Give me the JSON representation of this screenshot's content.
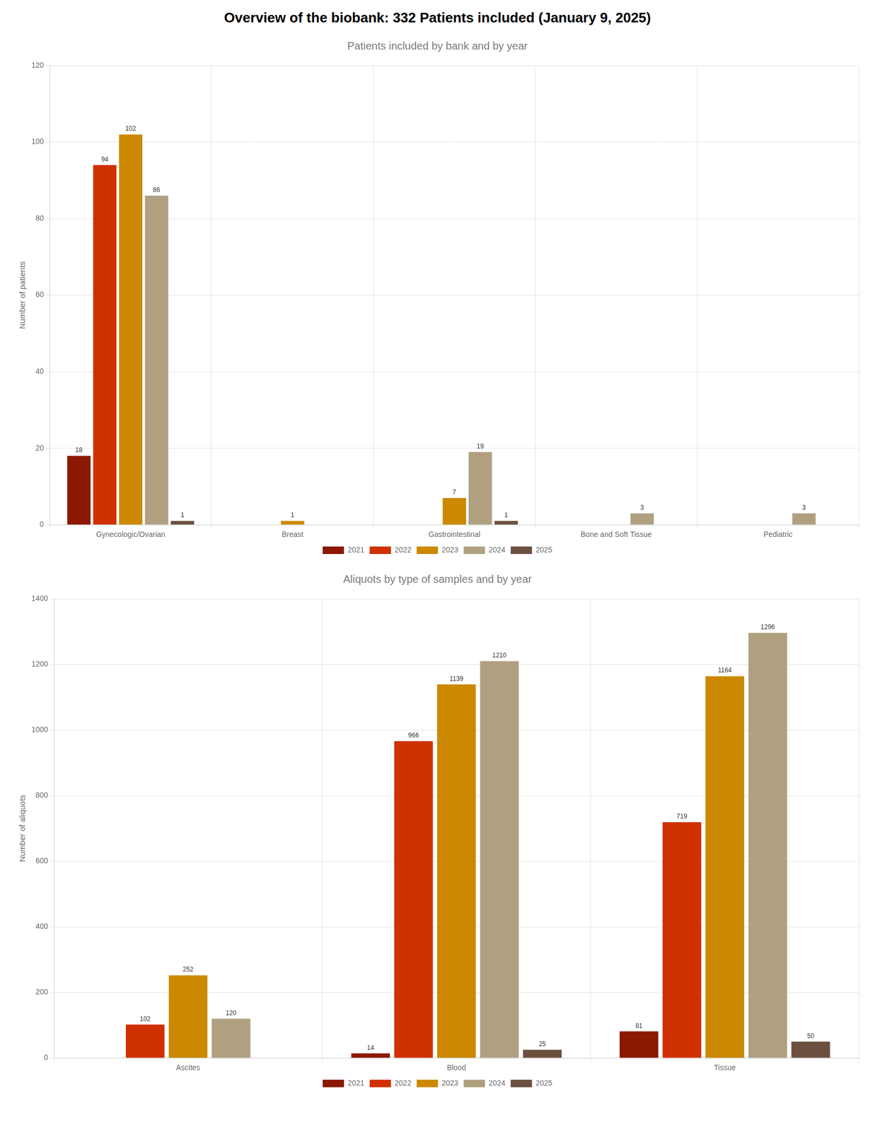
{
  "title": "Overview of the biobank: 332 Patients included (January 9, 2025)",
  "chart_data": [
    {
      "type": "bar",
      "title": "Patients included by bank and by year",
      "categories": [
        "Gynecologic/Ovarian",
        "Breast",
        "Gastrointestinal",
        "Bone and Soft Tissue",
        "Pediatric"
      ],
      "series": [
        {
          "name": "2021",
          "color": "#8B1800",
          "values": [
            18,
            0,
            0,
            0,
            0
          ],
          "value_labels": [
            "18",
            null,
            null,
            null,
            null
          ]
        },
        {
          "name": "2022",
          "color": "#D03000",
          "values": [
            94,
            0,
            0,
            0,
            0
          ],
          "value_labels": [
            "94",
            null,
            null,
            null,
            null
          ]
        },
        {
          "name": "2023",
          "color": "#CC8800",
          "values": [
            102,
            1,
            7,
            0,
            0
          ],
          "value_labels": [
            "102",
            "1",
            "7",
            null,
            null
          ]
        },
        {
          "name": "2024",
          "color": "#B0A080",
          "values": [
            86,
            0,
            19,
            3,
            3
          ],
          "value_labels": [
            "86",
            null,
            "19",
            "3",
            "3"
          ]
        },
        {
          "name": "2025",
          "color": "#6B5040",
          "values": [
            1,
            0,
            1,
            0,
            0
          ],
          "value_labels": [
            "1",
            null,
            "1",
            null,
            null
          ]
        }
      ],
      "ylabel": "Number of patients",
      "ylim": [
        0,
        120
      ],
      "yticks": [
        0,
        20,
        40,
        60,
        80,
        100,
        120
      ],
      "grid": true,
      "legend": "bottom",
      "data_labels": true
    },
    {
      "type": "bar",
      "title": "Aliquots by type of samples and by year",
      "categories": [
        "Ascites",
        "Blood",
        "Tissue"
      ],
      "series": [
        {
          "name": "2021",
          "color": "#8B1800",
          "values": [
            0,
            14,
            81
          ],
          "value_labels": [
            null,
            "14",
            "81"
          ]
        },
        {
          "name": "2022",
          "color": "#D03000",
          "values": [
            102,
            966,
            719
          ],
          "value_labels": [
            "102",
            "966",
            "719"
          ]
        },
        {
          "name": "2023",
          "color": "#CC8800",
          "values": [
            252,
            1139,
            1164
          ],
          "value_labels": [
            "252",
            "1139",
            "1164"
          ]
        },
        {
          "name": "2024",
          "color": "#B0A080",
          "values": [
            120,
            1210,
            1296
          ],
          "value_labels": [
            "120",
            "1210",
            "1296"
          ]
        },
        {
          "name": "2025",
          "color": "#6B5040",
          "values": [
            0,
            25,
            50
          ],
          "value_labels": [
            null,
            "25",
            "50"
          ]
        }
      ],
      "ylabel": "Number of aliquots",
      "ylim": [
        0,
        1400
      ],
      "yticks": [
        0,
        200,
        400,
        600,
        800,
        1000,
        1200,
        1400
      ],
      "grid": true,
      "legend": "bottom",
      "data_labels": true
    }
  ]
}
